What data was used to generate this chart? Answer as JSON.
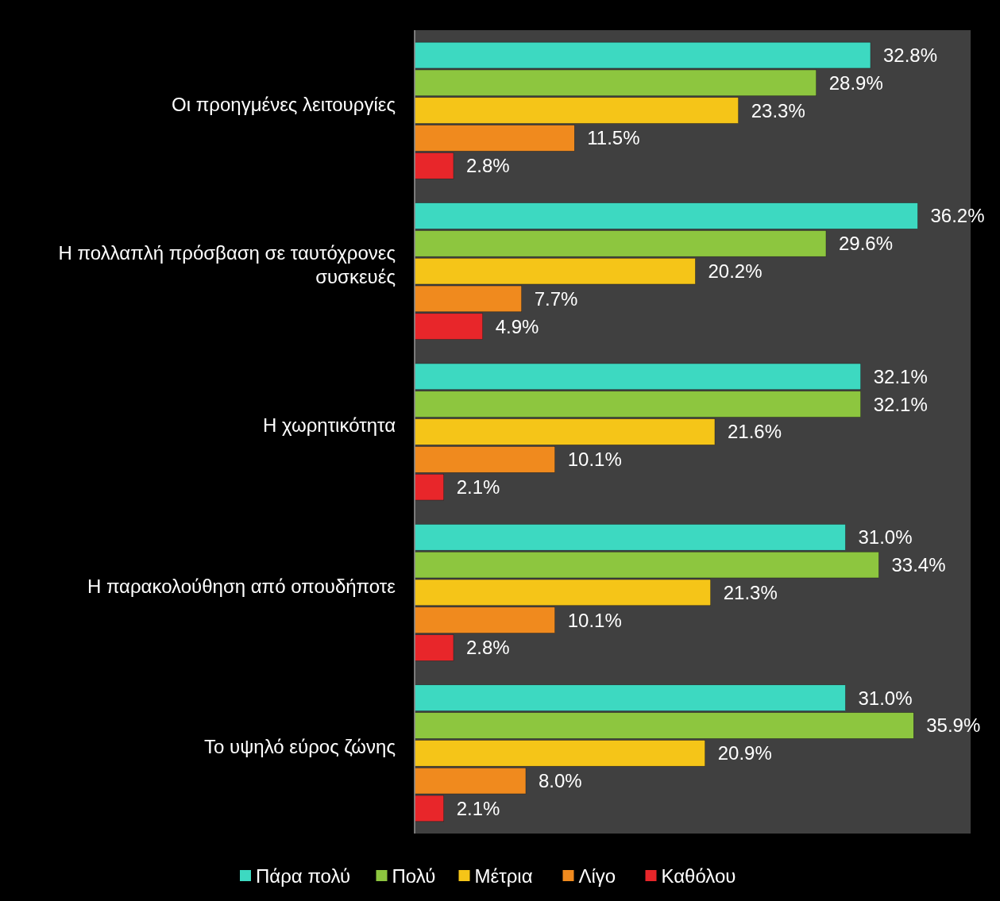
{
  "chart_data": {
    "type": "bar",
    "orientation": "horizontal",
    "categories": [
      "Οι προηγμένες λειτουργίες",
      "Η πολλαπλή πρόσβαση σε ταυτόχρονες συσκευές",
      "Η χωρητικότητα",
      "Η παρακολούθηση από οπουδήποτε",
      "Το υψηλό εύρος ζώνης"
    ],
    "series": [
      {
        "name": "Πάρα πολύ",
        "color": "#3dd9c1",
        "values": [
          32.8,
          36.2,
          32.1,
          31.0,
          31.0
        ],
        "value_labels": [
          "32.8%",
          "36.2%",
          "32.1%",
          "31.0%",
          "31.0%"
        ]
      },
      {
        "name": "Πολύ",
        "color": "#8dc63f",
        "values": [
          28.9,
          29.6,
          32.1,
          33.4,
          35.9
        ],
        "value_labels": [
          "28.9%",
          "29.6%",
          "32.1%",
          "33.4%",
          "35.9%"
        ]
      },
      {
        "name": "Μέτρια",
        "color": "#f5c518",
        "values": [
          23.3,
          20.2,
          21.6,
          21.3,
          20.9
        ],
        "value_labels": [
          "23.3%",
          "20.2%",
          "21.6%",
          "21.3%",
          "20.9%"
        ]
      },
      {
        "name": "Λίγο",
        "color": "#f08a1e",
        "values": [
          11.5,
          7.7,
          10.1,
          10.1,
          8.0
        ],
        "value_labels": [
          "11.5%",
          "7.7%",
          "10.1%",
          "10.1%",
          "8.0%"
        ]
      },
      {
        "name": "Καθόλου",
        "color": "#e8262a",
        "values": [
          2.8,
          4.9,
          2.1,
          2.8,
          2.1
        ],
        "value_labels": [
          "2.8%",
          "4.9%",
          "2.1%",
          "2.8%",
          "2.1%"
        ]
      }
    ],
    "xlim": [
      0,
      40
    ],
    "tick_labels": "y",
    "grid": false,
    "legend": "bottom"
  }
}
